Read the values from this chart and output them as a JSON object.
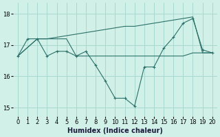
{
  "xlabel": "Humidex (Indice chaleur)",
  "bg_color": "#d0f0e8",
  "grid_color": "#a8d8d0",
  "line_color": "#2a7068",
  "xlim": [
    -0.5,
    20.5
  ],
  "ylim": [
    14.72,
    18.35
  ],
  "yticks": [
    15,
    16,
    17,
    18
  ],
  "xticks": [
    0,
    1,
    2,
    3,
    4,
    5,
    6,
    7,
    8,
    9,
    10,
    11,
    12,
    13,
    14,
    15,
    16,
    17,
    18,
    19,
    20
  ],
  "line_marked": {
    "x": [
      0,
      1,
      2,
      3,
      4,
      5,
      6,
      7,
      8,
      9,
      10,
      11,
      12,
      13,
      14,
      15,
      16,
      17,
      18,
      19,
      20
    ],
    "y": [
      16.65,
      17.2,
      17.2,
      16.65,
      16.8,
      16.8,
      16.65,
      16.8,
      16.35,
      15.85,
      15.3,
      15.3,
      15.05,
      16.3,
      16.3,
      16.9,
      17.25,
      17.7,
      17.85,
      16.85,
      16.75
    ]
  },
  "line_flat_low": {
    "x": [
      0,
      2,
      3,
      4,
      5,
      6,
      7,
      8,
      9,
      10,
      11,
      12,
      13,
      14,
      15,
      16,
      17,
      18,
      19,
      20
    ],
    "y": [
      16.65,
      17.2,
      17.2,
      17.2,
      17.2,
      16.65,
      16.65,
      16.65,
      16.65,
      16.65,
      16.65,
      16.65,
      16.65,
      16.65,
      16.65,
      16.65,
      16.65,
      16.75,
      16.75,
      16.75
    ]
  },
  "line_rising": {
    "x": [
      0,
      2,
      3,
      4,
      5,
      6,
      7,
      8,
      9,
      10,
      11,
      12,
      13,
      14,
      15,
      16,
      17,
      18,
      19,
      20
    ],
    "y": [
      16.65,
      17.2,
      17.2,
      17.25,
      17.3,
      17.35,
      17.4,
      17.45,
      17.5,
      17.55,
      17.6,
      17.6,
      17.65,
      17.7,
      17.75,
      17.8,
      17.85,
      17.9,
      16.75,
      16.75
    ]
  }
}
